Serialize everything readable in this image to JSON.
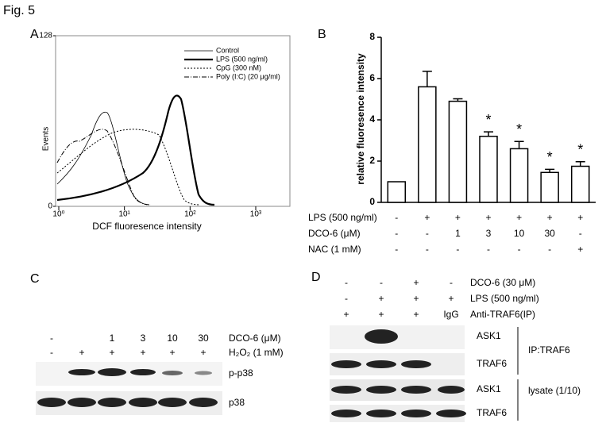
{
  "figure_label": "Fig. 5",
  "panel_a": {
    "label": "A",
    "y_axis_label": "Events",
    "x_axis_label": "DCF fluoresence intensity",
    "yticks": [
      0,
      128
    ],
    "xticks": [
      {
        "value": 1,
        "label": "10⁰"
      },
      {
        "value": 10,
        "label": "10¹"
      },
      {
        "value": 100,
        "label": "10²"
      },
      {
        "value": 1000,
        "label": "10³"
      }
    ],
    "legend": [
      "Control",
      "LPS (500 ng/ml)",
      "CpG (300 nM)",
      "Poly (I:C) (20 μg/ml)"
    ]
  },
  "chart_data": {
    "type": "bar",
    "label": "B",
    "y_label": "relative fluoresence intensity",
    "values": [
      1.0,
      5.6,
      4.9,
      3.2,
      2.6,
      1.45,
      1.75
    ],
    "errors": [
      0,
      0.75,
      0.12,
      0.22,
      0.35,
      0.15,
      0.22
    ],
    "annotations": [
      null,
      null,
      null,
      "*",
      "*",
      "*",
      "*"
    ],
    "color": "#ffffff",
    "ylim": [
      0,
      8
    ],
    "yticks": [
      0,
      2,
      4,
      6,
      8
    ],
    "conditions": [
      {
        "name": "LPS (500 ng/ml)",
        "values": [
          "-",
          "+",
          "+",
          "+",
          "+",
          "+",
          "+"
        ]
      },
      {
        "name": "DCO-6 (μM)",
        "values": [
          "-",
          "-",
          1,
          3,
          10,
          30,
          "-"
        ]
      },
      {
        "name": "NAC (1 mM)",
        "values": [
          "-",
          "-",
          "-",
          "-",
          "-",
          "-",
          "+"
        ]
      }
    ]
  },
  "panel_c": {
    "label": "C",
    "treatments": [
      {
        "name": "DCO-6 (μM)",
        "values": [
          "-",
          null,
          1,
          3,
          10,
          30
        ]
      },
      {
        "name": "H₂O₂ (1 mM)",
        "values": [
          "-",
          "+",
          "+",
          "+",
          "+",
          "+"
        ]
      }
    ],
    "bands": [
      "p-p38",
      "p38"
    ]
  },
  "panel_d": {
    "label": "D",
    "treatments": [
      {
        "name": "DCO-6 (30 μM)",
        "values": [
          "-",
          "-",
          "+",
          "-"
        ]
      },
      {
        "name": "LPS (500 ng/ml)",
        "values": [
          "-",
          "+",
          "+",
          "+"
        ]
      },
      {
        "name": "Anti-TRAF6(IP)",
        "values": [
          "+",
          "+",
          "+",
          "IgG"
        ]
      }
    ],
    "bands": [
      "ASK1",
      "TRAF6",
      "ASK1",
      "TRAF6"
    ],
    "groups": [
      "IP:TRAF6",
      "lysate (1/10)"
    ]
  }
}
